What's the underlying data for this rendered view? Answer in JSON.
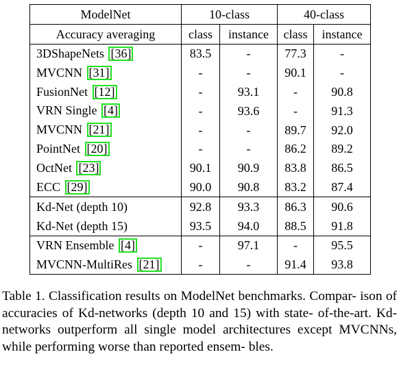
{
  "table": {
    "header1": {
      "model": "ModelNet",
      "group10": "10-class",
      "group40": "40-class"
    },
    "header2": {
      "label": "Accuracy averaging",
      "c10_class": "class",
      "c10_instance": "instance",
      "c40_class": "class",
      "c40_instance": "instance"
    },
    "rows": [
      {
        "name": "3DShapeNets",
        "ref": "[36]",
        "c10_class": "83.5",
        "c10_instance": "-",
        "c40_class": "77.3",
        "c40_instance": "-"
      },
      {
        "name": "MVCNN",
        "ref": "[31]",
        "c10_class": "-",
        "c10_instance": "-",
        "c40_class": "90.1",
        "c40_instance": "-"
      },
      {
        "name": "FusionNet",
        "ref": "[12]",
        "c10_class": "-",
        "c10_instance": "93.1",
        "c40_class": "-",
        "c40_instance": "90.8"
      },
      {
        "name": "VRN Single",
        "ref": "[4]",
        "c10_class": "-",
        "c10_instance": "93.6",
        "c40_class": "-",
        "c40_instance": "91.3"
      },
      {
        "name": "MVCNN",
        "ref": "[21]",
        "c10_class": "-",
        "c10_instance": "-",
        "c40_class": "89.7",
        "c40_instance": "92.0"
      },
      {
        "name": "PointNet",
        "ref": "[20]",
        "c10_class": "-",
        "c10_instance": "-",
        "c40_class": "86.2",
        "c40_instance": "89.2"
      },
      {
        "name": "OctNet",
        "ref": "[23]",
        "c10_class": "90.1",
        "c10_instance": "90.9",
        "c40_class": "83.8",
        "c40_instance": "86.5"
      },
      {
        "name": "ECC",
        "ref": "[29]",
        "c10_class": "90.0",
        "c10_instance": "90.8",
        "c40_class": "83.2",
        "c40_instance": "87.4"
      },
      {
        "name": "Kd-Net (depth 10)",
        "ref": "",
        "c10_class": "92.8",
        "c10_instance": "93.3",
        "c40_class": "86.3",
        "c40_instance": "90.6"
      },
      {
        "name": "Kd-Net (depth 15)",
        "ref": "",
        "c10_class": "93.5",
        "c10_instance": "94.0",
        "c40_class": "88.5",
        "c40_instance": "91.8"
      },
      {
        "name": "VRN Ensemble",
        "ref": "[4]",
        "c10_class": "-",
        "c10_instance": "97.1",
        "c40_class": "-",
        "c40_instance": "95.5"
      },
      {
        "name": "MVCNN-MultiRes",
        "ref": "[21]",
        "c10_class": "-",
        "c10_instance": "-",
        "c40_class": "91.4",
        "c40_instance": "93.8"
      }
    ]
  },
  "caption": {
    "line1": "Table 1. Classification results on ModelNet benchmarks. Compar-",
    "line2": "ison of accuracies of Kd-networks (depth 10 and 15) with state-",
    "line3": "of-the-art. Kd-networks outperform all single model architectures",
    "line4": "except MVCNNs, while performing worse than reported ensem-",
    "line5": "bles."
  },
  "colors": {
    "citation_box": "#22e022"
  }
}
